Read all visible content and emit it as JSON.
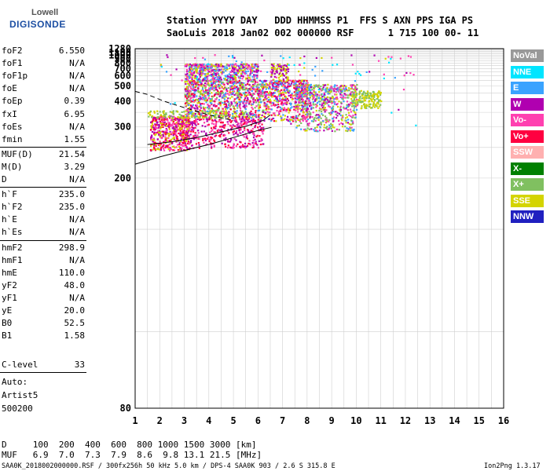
{
  "logo": {
    "line1": "Lowell",
    "line2": "DIGISONDE"
  },
  "header": {
    "line1": "Station YYYY DAY   DDD HHMMSS P1  FFS S AXN PPS IGA PS",
    "line2": "SaoLuis 2018 Jan02 002 000000 RSF      1 715 100 00- 11"
  },
  "params": [
    {
      "name": "foF2",
      "value": "6.550"
    },
    {
      "name": "foF1",
      "value": "N/A"
    },
    {
      "name": "foF1p",
      "value": "N/A"
    },
    {
      "name": "foE",
      "value": "N/A"
    },
    {
      "name": "foEp",
      "value": "0.39"
    },
    {
      "name": "fxI",
      "value": "6.95"
    },
    {
      "name": "foEs",
      "value": "N/A"
    },
    {
      "name": "fmin",
      "value": "1.55"
    },
    {
      "name": "MUF(D)",
      "value": "21.54"
    },
    {
      "name": "M(D)",
      "value": "3.29"
    },
    {
      "name": "D",
      "value": "N/A"
    },
    {
      "name": "h`F",
      "value": "235.0"
    },
    {
      "name": "h`F2",
      "value": "235.0"
    },
    {
      "name": "h`E",
      "value": "N/A"
    },
    {
      "name": "h`Es",
      "value": "N/A"
    },
    {
      "name": "hmF2",
      "value": "298.9"
    },
    {
      "name": "hmF1",
      "value": "N/A"
    },
    {
      "name": "hmE",
      "value": "110.0"
    },
    {
      "name": "yF2",
      "value": "48.0"
    },
    {
      "name": "yF1",
      "value": "N/A"
    },
    {
      "name": "yE",
      "value": "20.0"
    },
    {
      "name": "B0",
      "value": "52.5"
    },
    {
      "name": "B1",
      "value": "1.58"
    }
  ],
  "clevel": {
    "name": "C-level",
    "value": "33"
  },
  "auto": [
    "Auto:",
    "Artist5",
    "500200"
  ],
  "legend": [
    {
      "label": "NoVal",
      "color": "#999999"
    },
    {
      "label": "NNE",
      "color": "#00e5ff"
    },
    {
      "label": "E",
      "color": "#3aa3ff"
    },
    {
      "label": "W",
      "color": "#b000b0"
    },
    {
      "label": "Vo-",
      "color": "#ff40b0"
    },
    {
      "label": "Vo+",
      "color": "#ff0040"
    },
    {
      "label": "SSW",
      "color": "#ffb0b0"
    },
    {
      "label": "X-",
      "color": "#008000"
    },
    {
      "label": "X+",
      "color": "#80c060"
    },
    {
      "label": "SSE",
      "color": "#d4d400"
    },
    {
      "label": "NNW",
      "color": "#2020c0"
    }
  ],
  "muf_table": {
    "d_line": "D     100  200  400  600  800 1000 1500 3000 [km]",
    "muf_line": "MUF   6.9  7.0  7.3  7.9  8.6  9.8 13.1 21.5 [MHz]"
  },
  "footer": {
    "left": "SAA0K_2018002000000.RSF / 300fx256h 50 kHz 5.0 km / DPS-4 SAA0K 903 / 2.6 S 315.8 E",
    "right": "Ion2Png 1.3.17"
  },
  "chart_data": {
    "type": "scatter",
    "x_ticks": [
      "1",
      "2",
      "3",
      "4",
      "5",
      "6",
      "7",
      "8",
      "9",
      "10",
      "11",
      "12",
      "13",
      "14",
      "15",
      "16"
    ],
    "y_ticks": [
      "80",
      "200",
      "300",
      "400",
      "500",
      "600",
      "700",
      "800",
      "900",
      "1000",
      "1100",
      "1280"
    ],
    "xlim": [
      1,
      16
    ],
    "ylim": [
      80,
      1280
    ],
    "y_scale": "reciprocal",
    "grid": true,
    "clusters": [
      {
        "x": [
          1.6,
          3.2
        ],
        "y": [
          245,
          340
        ],
        "n": 520,
        "colors": [
          "#ff0040",
          "#b000b0",
          "#ff40b0",
          "#d4d400"
        ]
      },
      {
        "x": [
          3.0,
          6.2
        ],
        "y": [
          250,
          330
        ],
        "n": 380,
        "colors": [
          "#ff0040",
          "#b000b0",
          "#ff40b0"
        ]
      },
      {
        "x": [
          1.5,
          5.5
        ],
        "y": [
          330,
          360
        ],
        "n": 160,
        "colors": [
          "#d4d400",
          "#80c060"
        ]
      },
      {
        "x": [
          3.0,
          6.2
        ],
        "y": [
          330,
          560
        ],
        "n": 900,
        "colors": [
          "#ff40b0",
          "#b000b0",
          "#ff0040",
          "#d4d400",
          "#3aa3ff",
          "#80c060"
        ]
      },
      {
        "x": [
          3.0,
          6.0
        ],
        "y": [
          560,
          800
        ],
        "n": 520,
        "colors": [
          "#d4d400",
          "#b000b0",
          "#ff40b0",
          "#3aa3ff"
        ]
      },
      {
        "x": [
          6.2,
          8.0
        ],
        "y": [
          320,
          560
        ],
        "n": 520,
        "colors": [
          "#ff40b0",
          "#b000b0",
          "#ff0040",
          "#d4d400",
          "#3aa3ff"
        ]
      },
      {
        "x": [
          7.5,
          10.0
        ],
        "y": [
          290,
          520
        ],
        "n": 680,
        "colors": [
          "#b000b0",
          "#ff40b0",
          "#d4d400",
          "#3aa3ff",
          "#80c060"
        ]
      },
      {
        "x": [
          9.8,
          11.0
        ],
        "y": [
          370,
          470
        ],
        "n": 160,
        "colors": [
          "#d4d400",
          "#80c060"
        ]
      },
      {
        "x": [
          6.5,
          7.2
        ],
        "y": [
          560,
          800
        ],
        "n": 90,
        "colors": [
          "#d4d400",
          "#b000b0"
        ]
      },
      {
        "x": [
          2.0,
          12.5
        ],
        "y": [
          300,
          1040
        ],
        "n": 120,
        "colors": [
          "#b000b0",
          "#ff40b0",
          "#3aa3ff",
          "#00e5ff",
          "#d4d400"
        ]
      }
    ],
    "curves": [
      {
        "name": "",
        "style": "solid",
        "x": [
          1.0,
          2.0,
          3.0,
          4.0,
          5.0,
          6.0,
          6.55
        ],
        "y": [
          220,
          232,
          244,
          256,
          272,
          290,
          299
        ]
      },
      {
        "name": "",
        "style": "solid",
        "x": [
          1.5,
          2.5,
          3.5,
          4.5,
          5.5,
          6.2,
          6.5
        ],
        "y": [
          256,
          262,
          272,
          286,
          302,
          320,
          340
        ]
      },
      {
        "name": "",
        "style": "dashed",
        "x": [
          1.0,
          1.5,
          2.2,
          3.0,
          4.0,
          5.0
        ],
        "y": [
          460,
          440,
          400,
          370,
          340,
          320
        ]
      }
    ]
  }
}
